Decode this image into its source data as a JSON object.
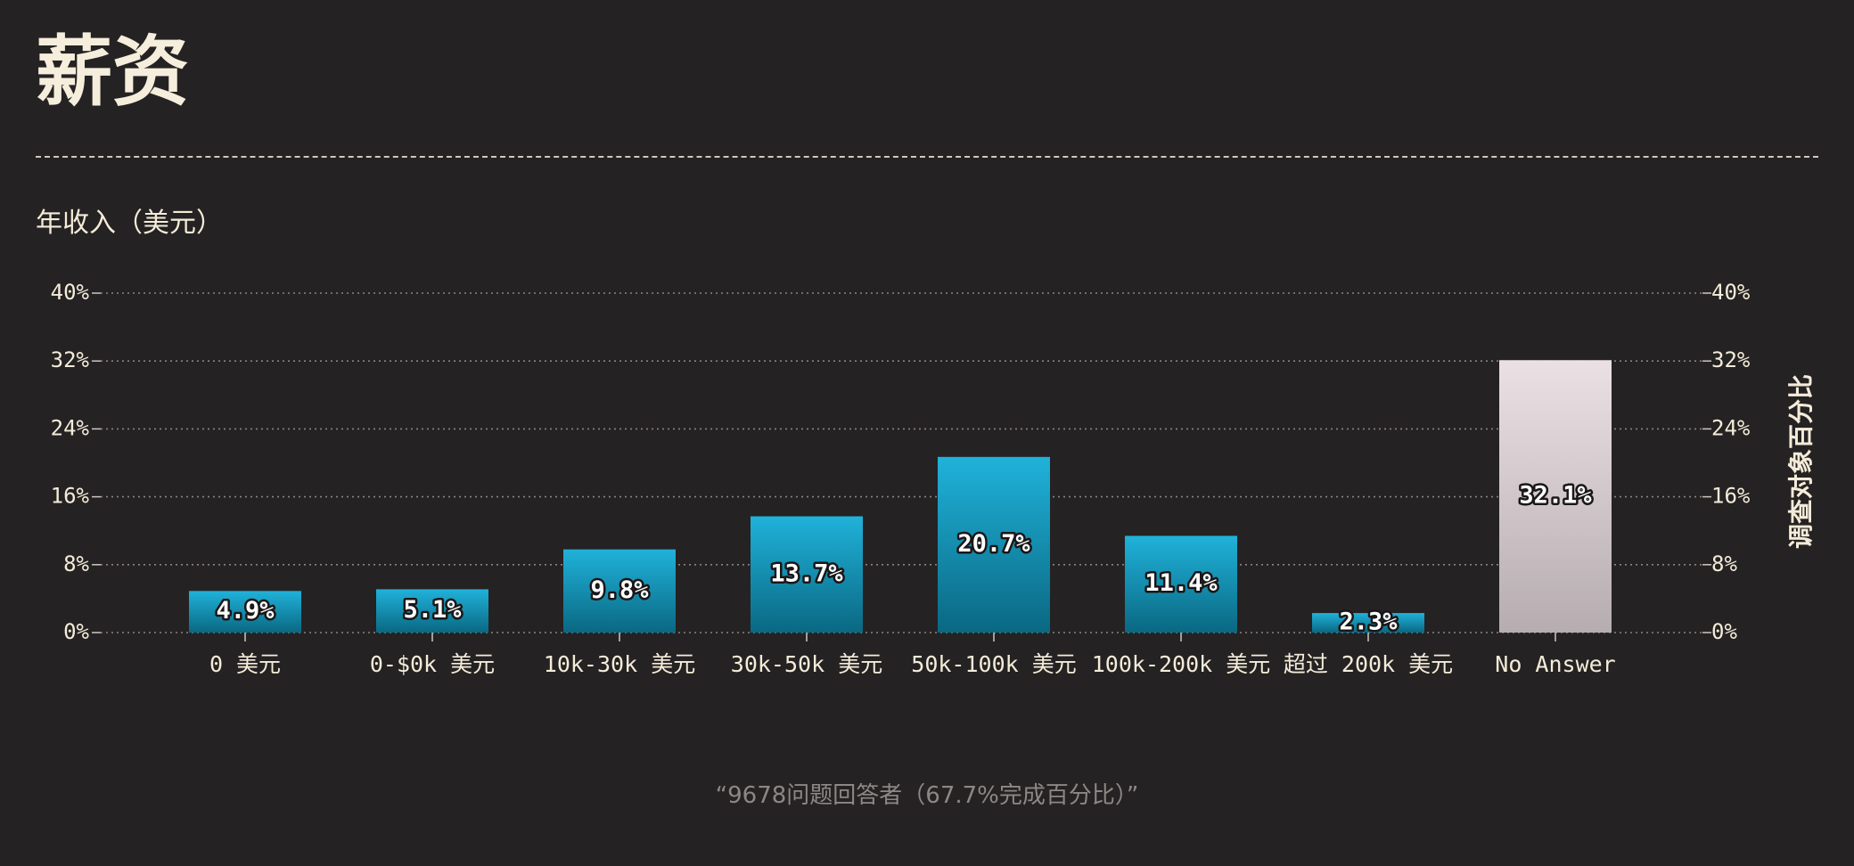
{
  "page": {
    "title": "薪资",
    "footnote": "“9678问题回答者（67.7%完成百分比）”"
  },
  "chart_data": {
    "type": "bar",
    "title": "年收入（美元）",
    "xlabel": "",
    "ylabel": "调查对象百分比",
    "ylim": [
      0,
      40
    ],
    "yticks": [
      0,
      8,
      16,
      24,
      32,
      40
    ],
    "ytick_labels": [
      "0%",
      "8%",
      "16%",
      "24%",
      "32%",
      "40%"
    ],
    "grid": true,
    "categories": [
      "0 美元",
      "0-$0k 美元",
      "10k-30k 美元",
      "30k-50k 美元",
      "50k-100k 美元",
      "100k-200k 美元",
      "超过 200k 美元",
      "No Answer"
    ],
    "values": [
      4.9,
      5.1,
      9.8,
      13.7,
      20.7,
      11.4,
      2.3,
      32.1
    ],
    "value_labels": [
      "4.9%",
      "5.1%",
      "9.8%",
      "13.7%",
      "20.7%",
      "11.4%",
      "2.3%",
      "32.1%"
    ],
    "colors": {
      "bar": "#1aa7cc",
      "bar_dark": "#0a6a85",
      "highlight": "#e8dfe2",
      "highlight_dark": "#b7aeb2",
      "text": "#f4ecd9",
      "background": "#252223"
    }
  }
}
